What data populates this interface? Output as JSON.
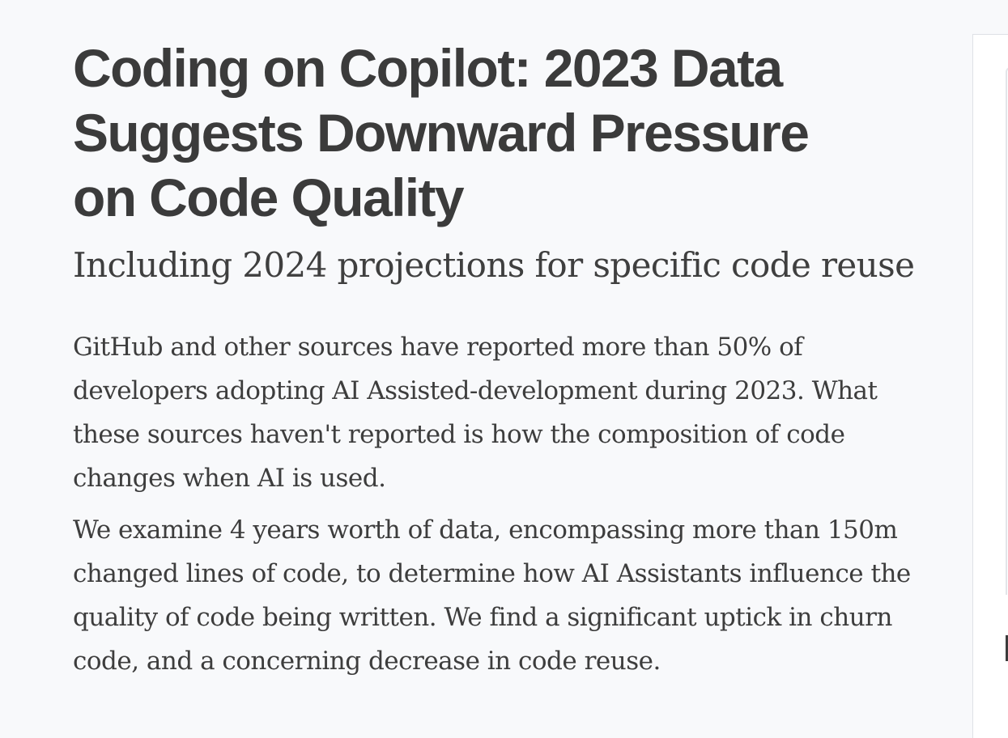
{
  "article": {
    "title": "Coding on Copilot: 2023 Data Suggests Downward Pressure on Code Quality",
    "subtitle": "Including 2024 projections for specific code reuse",
    "paragraphs": [
      "GitHub and other sources have reported more than 50% of developers adopting AI Assisted-development during 2023. What these sources haven't reported is how the composition of code changes when AI is used.",
      "We examine 4 years worth of data, encompassing more than 150m changed lines of code, to determine how AI Assistants influence the quality of code being written. We find a significant uptick in churn code, and a concerning decrease in code reuse."
    ]
  },
  "colors": {
    "background": "#f8f9fb",
    "text": "#3c3c3c",
    "panel_border": "#dfe1e6"
  }
}
